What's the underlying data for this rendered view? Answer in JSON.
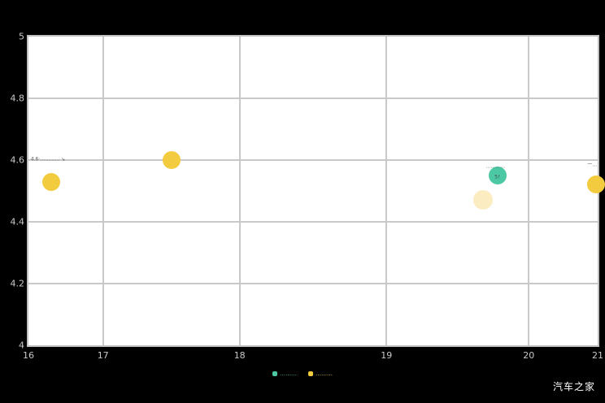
{
  "watermark": "汽车之家",
  "colors": {
    "background": "#000000",
    "plot_background": "#ffffff",
    "grid": "#c9c9c9",
    "tick_label": "#c9c9c9",
    "yellow": "#F3CB3E",
    "pale_yellow": "#FBECC1",
    "teal": "#4CC8A5"
  },
  "chart_data": {
    "type": "scatter",
    "title": "",
    "xlabel": "",
    "ylabel": "",
    "xlim": [
      16,
      21
    ],
    "ylim": [
      4,
      5
    ],
    "grid": true,
    "x_ticks": {
      "values": [
        16,
        17,
        18,
        19,
        20,
        21
      ],
      "labels": [
        "16",
        "17",
        "18",
        "19",
        "20",
        "21"
      ],
      "fracs": [
        0,
        0.131,
        0.371,
        0.629,
        0.879,
        1
      ]
    },
    "y_ticks": {
      "values": [
        5,
        4.8,
        4.6,
        4.4,
        4.2,
        4
      ],
      "labels": [
        "5",
        "4.8",
        "4.6",
        "4.4",
        "4.2",
        "4"
      ]
    },
    "series": [
      {
        "name": "series-yellow",
        "color": "#F3CB3E",
        "points": [
          {
            "x": 16.3,
            "y": 4.53,
            "r": 11
          },
          {
            "x": 17.5,
            "y": 4.6,
            "r": 11
          },
          {
            "x": 20.98,
            "y": 4.52,
            "r": 11
          }
        ]
      },
      {
        "name": "series-pale-yellow",
        "color": "#FBECC1",
        "points": [
          {
            "x": 19.68,
            "y": 4.47,
            "r": 12
          }
        ]
      },
      {
        "name": "series-teal",
        "color": "#4CC8A5",
        "points": [
          {
            "x": 19.78,
            "y": 4.55,
            "r": 11
          }
        ]
      }
    ],
    "annotations": [
      {
        "x": 16.03,
        "y": 4.603,
        "text": "4.6·………… ↘",
        "color": "#555555"
      },
      {
        "x": 19.7,
        "y": 4.58,
        "text": "…………",
        "color": "#555555"
      },
      {
        "x": 19.76,
        "y": 4.545,
        "text": "5!",
        "color": "#444444"
      },
      {
        "x": 20.85,
        "y": 4.585,
        "text": "一…",
        "color": "#555555"
      }
    ],
    "legend": [
      {
        "color": "#4CC8A5",
        "label": "………"
      },
      {
        "color": "#F3CB3E",
        "label": "………"
      }
    ]
  }
}
